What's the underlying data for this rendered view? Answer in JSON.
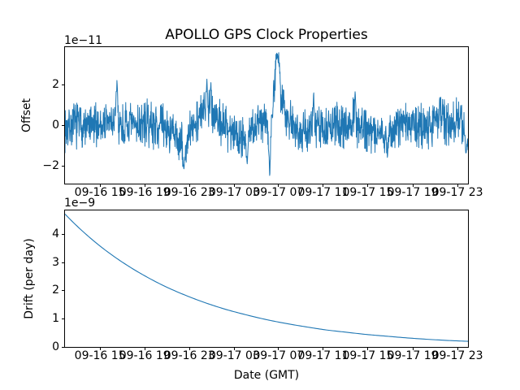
{
  "colors": {
    "line": "#1f77b4",
    "axes": "#000000",
    "background": "#ffffff",
    "text": "#000000"
  },
  "chart_data": [
    {
      "type": "line",
      "name": "offset-vs-time",
      "title": "APOLLO GPS Clock Properties",
      "ylabel": "Offset",
      "scale_text": "1e−11",
      "scale_factor": 1e-11,
      "ylim": [
        -2.86,
        3.86
      ],
      "ytick_values": [
        -2,
        0,
        2
      ],
      "ytick_labels": [
        "−2",
        "0",
        "2"
      ],
      "x_tick_pos": [
        0.087,
        0.198,
        0.309,
        0.42,
        0.53,
        0.641,
        0.752,
        0.863,
        0.974
      ],
      "x_tick_labels": [
        "09-16 15",
        "09-16 19",
        "09-16 23",
        "09-17 03",
        "09-17 07",
        "09-17 11",
        "09-17 15",
        "09-17 19",
        "09-17 23"
      ],
      "grid": false,
      "legend": null,
      "series_gen": {
        "seed": 7,
        "n": 1600,
        "noise_amp": 1.3,
        "anchors": [
          [
            0.0,
            -0.15
          ],
          [
            0.03,
            0.1
          ],
          [
            0.06,
            -0.15
          ],
          [
            0.09,
            0.1
          ],
          [
            0.12,
            0.2
          ],
          [
            0.15,
            -0.1
          ],
          [
            0.18,
            0.05
          ],
          [
            0.21,
            0.1
          ],
          [
            0.24,
            0.0
          ],
          [
            0.265,
            -0.4
          ],
          [
            0.285,
            -0.85
          ],
          [
            0.3,
            -1.0
          ],
          [
            0.315,
            -0.15
          ],
          [
            0.33,
            0.45
          ],
          [
            0.345,
            0.65
          ],
          [
            0.36,
            0.7
          ],
          [
            0.375,
            0.45
          ],
          [
            0.39,
            0.05
          ],
          [
            0.405,
            -0.15
          ],
          [
            0.42,
            -0.3
          ],
          [
            0.435,
            -0.5
          ],
          [
            0.45,
            -0.55
          ],
          [
            0.465,
            -0.2
          ],
          [
            0.48,
            0.1
          ],
          [
            0.495,
            0.4
          ],
          [
            0.505,
            0.3
          ],
          [
            0.515,
            1.2
          ],
          [
            0.523,
            2.4
          ],
          [
            0.53,
            2.6
          ],
          [
            0.54,
            1.2
          ],
          [
            0.55,
            0.6
          ],
          [
            0.565,
            0.15
          ],
          [
            0.58,
            -0.2
          ],
          [
            0.6,
            -0.35
          ],
          [
            0.62,
            -0.1
          ],
          [
            0.64,
            -0.2
          ],
          [
            0.66,
            -0.1
          ],
          [
            0.68,
            0.0
          ],
          [
            0.7,
            0.15
          ],
          [
            0.72,
            0.25
          ],
          [
            0.74,
            -0.1
          ],
          [
            0.76,
            -0.2
          ],
          [
            0.78,
            -0.3
          ],
          [
            0.8,
            -0.4
          ],
          [
            0.82,
            -0.1
          ],
          [
            0.84,
            0.1
          ],
          [
            0.86,
            0.05
          ],
          [
            0.88,
            -0.15
          ],
          [
            0.9,
            0.1
          ],
          [
            0.92,
            0.3
          ],
          [
            0.94,
            0.2
          ],
          [
            0.96,
            0.1
          ],
          [
            0.98,
            0.3
          ],
          [
            1.0,
            -0.6
          ]
        ],
        "spikes": [
          [
            0.129,
            2.3,
            0.004
          ],
          [
            0.295,
            -2.2,
            0.005
          ],
          [
            0.352,
            2.35,
            0.004
          ],
          [
            0.362,
            2.2,
            0.003
          ],
          [
            0.452,
            -1.95,
            0.004
          ],
          [
            0.508,
            -2.55,
            0.005
          ],
          [
            0.527,
            3.55,
            0.007
          ],
          [
            0.617,
            1.8,
            0.003
          ],
          [
            0.72,
            1.75,
            0.003
          ],
          [
            0.8,
            -1.6,
            0.004
          ],
          [
            0.93,
            1.4,
            0.003
          ],
          [
            0.995,
            -1.35,
            0.005
          ]
        ]
      }
    },
    {
      "type": "line",
      "name": "drift-vs-time",
      "ylabel": "Drift (per day)",
      "xlabel": "Date (GMT)",
      "scale_text": "1e−9",
      "scale_factor": 1e-09,
      "ylim": [
        0,
        4.85
      ],
      "ytick_values": [
        0,
        1,
        2,
        3,
        4
      ],
      "ytick_labels": [
        "0",
        "1",
        "2",
        "3",
        "4"
      ],
      "x_tick_pos": [
        0.087,
        0.198,
        0.309,
        0.42,
        0.53,
        0.641,
        0.752,
        0.863,
        0.974
      ],
      "x_tick_labels": [
        "09-16 15",
        "09-16 19",
        "09-16 23",
        "09-17 03",
        "09-17 07",
        "09-17 11",
        "09-17 15",
        "09-17 19",
        "09-17 23"
      ],
      "grid": false,
      "legend": null,
      "points": [
        [
          0.0,
          4.72
        ],
        [
          0.05,
          4.03
        ],
        [
          0.1,
          3.44
        ],
        [
          0.15,
          2.94
        ],
        [
          0.2,
          2.51
        ],
        [
          0.25,
          2.14
        ],
        [
          0.3,
          1.83
        ],
        [
          0.35,
          1.56
        ],
        [
          0.4,
          1.33
        ],
        [
          0.45,
          1.14
        ],
        [
          0.5,
          0.97
        ],
        [
          0.55,
          0.83
        ],
        [
          0.6,
          0.71
        ],
        [
          0.65,
          0.6
        ],
        [
          0.7,
          0.52
        ],
        [
          0.75,
          0.44
        ],
        [
          0.8,
          0.38
        ],
        [
          0.85,
          0.32
        ],
        [
          0.9,
          0.27
        ],
        [
          0.95,
          0.23
        ],
        [
          1.0,
          0.2
        ]
      ]
    }
  ]
}
